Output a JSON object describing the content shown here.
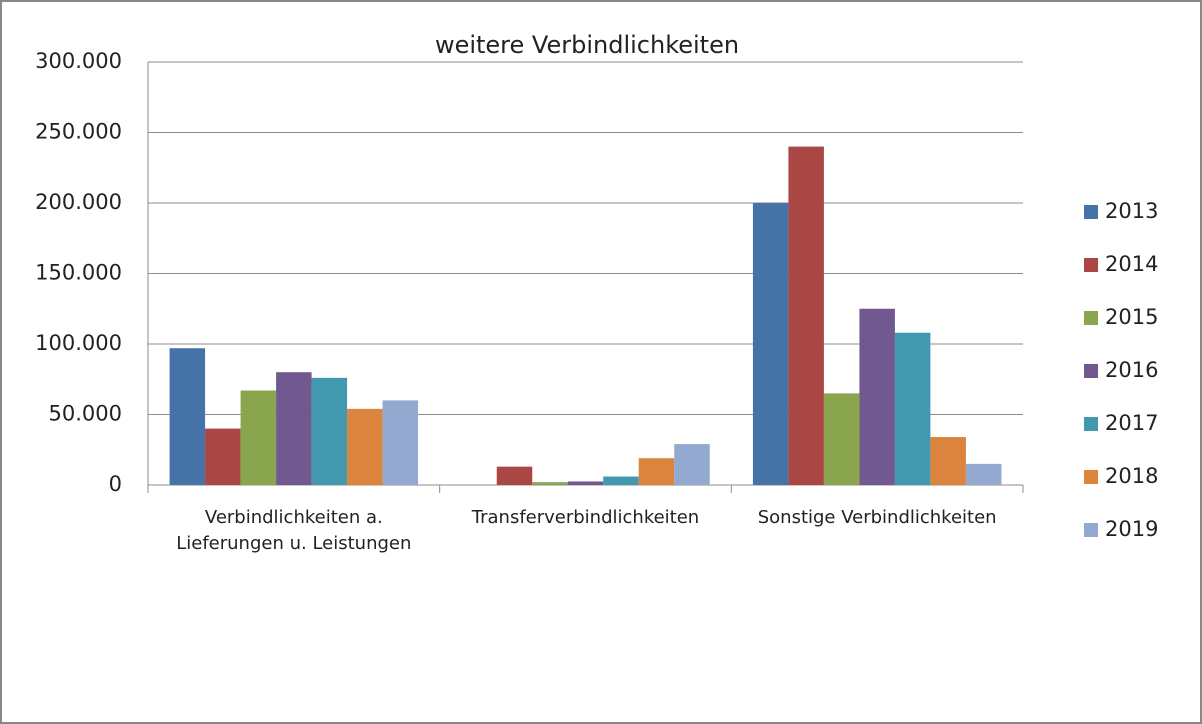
{
  "chart_data": {
    "type": "bar",
    "title": "weitere Verbindlichkeiten",
    "categories": [
      "Verbindlichkeiten a. Lieferungen u. Leistungen",
      "Transferverbindlichkeiten",
      "Sonstige Verbindlichkeiten"
    ],
    "series": [
      {
        "name": "2013",
        "color": "#4572a7",
        "values": [
          97000,
          0,
          200000
        ]
      },
      {
        "name": "2014",
        "color": "#aa4643",
        "values": [
          40000,
          13000,
          240000
        ]
      },
      {
        "name": "2015",
        "color": "#89a54e",
        "values": [
          67000,
          2000,
          65000
        ]
      },
      {
        "name": "2016",
        "color": "#71588f",
        "values": [
          80000,
          2500,
          125000
        ]
      },
      {
        "name": "2017",
        "color": "#4198af",
        "values": [
          76000,
          6000,
          108000
        ]
      },
      {
        "name": "2018",
        "color": "#db843d",
        "values": [
          54000,
          19000,
          34000
        ]
      },
      {
        "name": "2019",
        "color": "#93a9cf",
        "values": [
          60000,
          29000,
          15000
        ]
      }
    ],
    "ylim": [
      0,
      300000
    ],
    "yticks": [
      {
        "value": 0,
        "label": "0"
      },
      {
        "value": 50000,
        "label": "50.000"
      },
      {
        "value": 100000,
        "label": "100.000"
      },
      {
        "value": 150000,
        "label": "150.000"
      },
      {
        "value": 200000,
        "label": "200.000"
      },
      {
        "value": 250000,
        "label": "250.000"
      },
      {
        "value": 300000,
        "label": "300.000"
      }
    ],
    "grid": true,
    "legend": "right"
  }
}
